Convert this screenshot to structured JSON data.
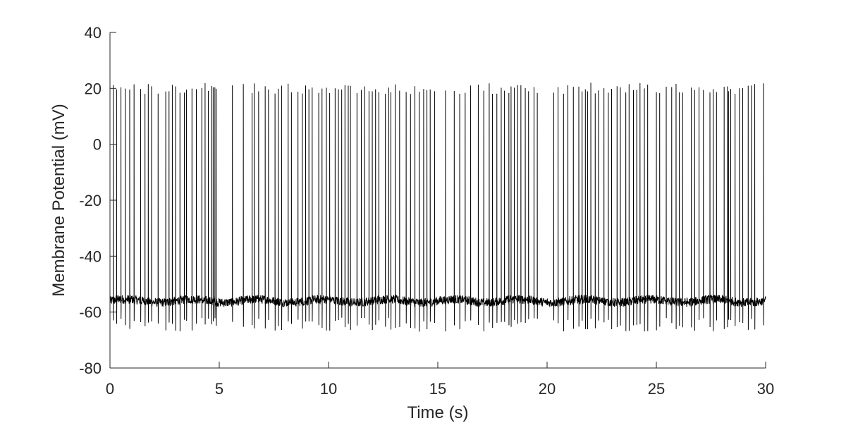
{
  "chart_data": {
    "type": "line",
    "title": "",
    "xlabel": "Time (s)",
    "ylabel": "Membrane Potential (mV)",
    "xlim": [
      0,
      30
    ],
    "ylim": [
      -80,
      40
    ],
    "xticks": [
      0,
      5,
      10,
      15,
      20,
      25,
      30
    ],
    "yticks": [
      -80,
      -60,
      -40,
      -20,
      0,
      20,
      40
    ],
    "xtick_labels": [
      "0",
      "5",
      "10",
      "15",
      "20",
      "25",
      "30"
    ],
    "ytick_labels": [
      "-80",
      "-60",
      "-40",
      "-20",
      "0",
      "20",
      "40"
    ],
    "grid": false,
    "legend": "none",
    "line_color": "#000000",
    "axis_color": "#262626",
    "resting_potential_mv": -56,
    "spike_peak_mv": 20,
    "after_hyperpolarization_mv": -62,
    "spike_times_s": [
      0.15,
      0.3,
      0.5,
      0.7,
      0.9,
      1.1,
      1.4,
      1.6,
      1.75,
      1.9,
      2.2,
      2.55,
      2.7,
      2.85,
      3.0,
      3.2,
      3.4,
      3.5,
      3.75,
      3.95,
      4.2,
      4.35,
      4.5,
      4.65,
      4.72,
      4.8,
      4.86,
      5.6,
      6.1,
      6.5,
      6.6,
      6.8,
      7.1,
      7.25,
      7.55,
      7.7,
      7.85,
      8.15,
      8.3,
      8.6,
      8.8,
      8.95,
      9.1,
      9.25,
      9.55,
      9.7,
      9.9,
      10.05,
      10.3,
      10.45,
      10.6,
      10.75,
      10.9,
      11.0,
      11.3,
      11.5,
      11.65,
      11.85,
      12.0,
      12.15,
      12.3,
      12.6,
      12.75,
      12.85,
      13.05,
      13.25,
      13.55,
      13.75,
      13.95,
      14.15,
      14.35,
      14.5,
      14.65,
      14.85,
      15.35,
      15.75,
      16.0,
      16.25,
      16.5,
      16.85,
      17.1,
      17.35,
      17.5,
      17.7,
      17.9,
      18.05,
      18.25,
      18.35,
      18.5,
      18.65,
      18.8,
      19.0,
      19.15,
      19.4,
      19.55,
      20.3,
      20.5,
      20.75,
      20.95,
      21.2,
      21.45,
      21.6,
      21.75,
      21.85,
      22.0,
      22.2,
      22.35,
      22.6,
      22.8,
      22.95,
      23.2,
      23.35,
      23.6,
      23.75,
      23.95,
      24.1,
      24.25,
      24.45,
      24.6,
      25.0,
      25.15,
      25.45,
      25.7,
      25.9,
      26.05,
      26.2,
      26.6,
      26.75,
      26.95,
      27.15,
      27.45,
      27.6,
      27.75,
      28.1,
      28.25,
      28.3,
      28.4,
      28.6,
      28.8,
      28.95,
      29.2,
      29.35,
      29.5,
      29.9
    ]
  }
}
